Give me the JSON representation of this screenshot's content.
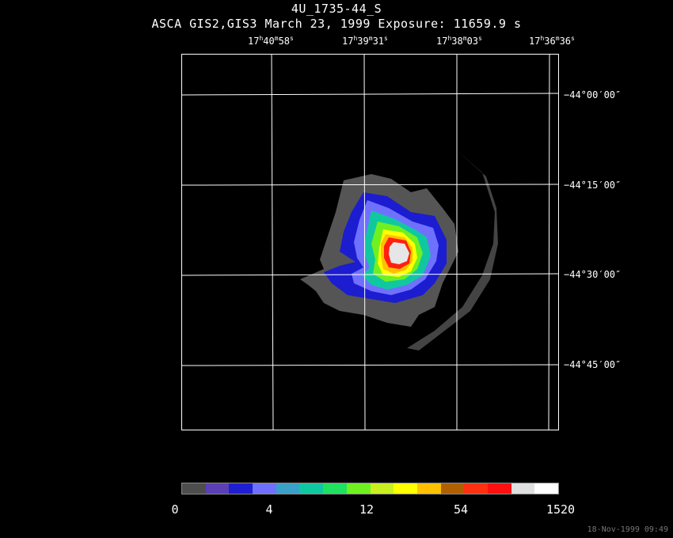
{
  "title": "4U_1735-44_S",
  "subtitle": "ASCA GIS2,GIS3 March 23, 1999 Exposure: 11659.9 s",
  "ra_labels": [
    {
      "h": "17",
      "m": "40",
      "s": "58"
    },
    {
      "h": "17",
      "m": "39",
      "s": "31"
    },
    {
      "h": "17",
      "m": "38",
      "s": "03"
    },
    {
      "h": "17",
      "m": "36",
      "s": "36"
    }
  ],
  "dec_labels": [
    "−44°00′00″",
    "−44°15′00″",
    "−44°30′00″",
    "−44°45′00″"
  ],
  "colorbar": {
    "colors": [
      "#4d4d4d",
      "#5a3fb5",
      "#1f1fd0",
      "#7070ff",
      "#3aa0c8",
      "#10c8a0",
      "#20e060",
      "#70f020",
      "#c8f020",
      "#ffff00",
      "#ffc000",
      "#b06000",
      "#ff3010",
      "#ff1010",
      "#e0e0e0",
      "#ffffff"
    ],
    "labels": [
      "0",
      "4",
      "12",
      "54",
      "1520"
    ]
  },
  "timestamp": "18-Nov-1999 09:49"
}
